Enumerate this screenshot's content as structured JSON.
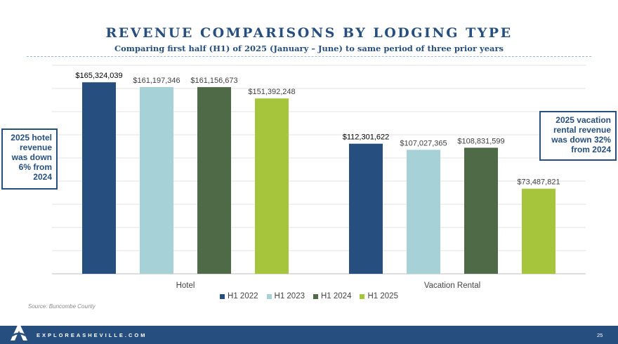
{
  "header": {
    "title": "REVENUE COMPARISONS BY LODGING TYPE",
    "subtitle": "Comparing first half  (H1) of 2025 (January – June) to same period of three prior years"
  },
  "callouts": {
    "hotel": "2025 hotel revenue was down 6% from 2024",
    "vacation": "2025 vacation rental revenue was down 32% from 2024"
  },
  "source": "Source: Buncombe County",
  "footer": {
    "url": "EXPLOREASHEVILLE.COM",
    "page": "25",
    "logo_icon": "asheville-a-logo-icon"
  },
  "chart_data": {
    "type": "bar",
    "categories": [
      "Hotel",
      "Vacation Rental"
    ],
    "series": [
      {
        "name": "H1 2022",
        "color": "#264f7f",
        "values": [
          165324039,
          112301622
        ],
        "labels": [
          "$165,324,039",
          "$112,301,622"
        ]
      },
      {
        "name": "H1 2023",
        "color": "#a6d1d7",
        "values": [
          161197346,
          107027365
        ],
        "labels": [
          "$161,197,346",
          "$107,027,365"
        ]
      },
      {
        "name": "H1 2024",
        "color": "#4e6a46",
        "values": [
          161156673,
          108831599
        ],
        "labels": [
          "$161,156,673",
          "$108,831,599"
        ]
      },
      {
        "name": "H1 2025",
        "color": "#a7c43d",
        "values": [
          151392248,
          73487821
        ],
        "labels": [
          "$151,392,248",
          "$73,487,821"
        ]
      }
    ],
    "ylim": [
      0,
      180000000
    ],
    "grid": true,
    "legend_position": "bottom"
  }
}
